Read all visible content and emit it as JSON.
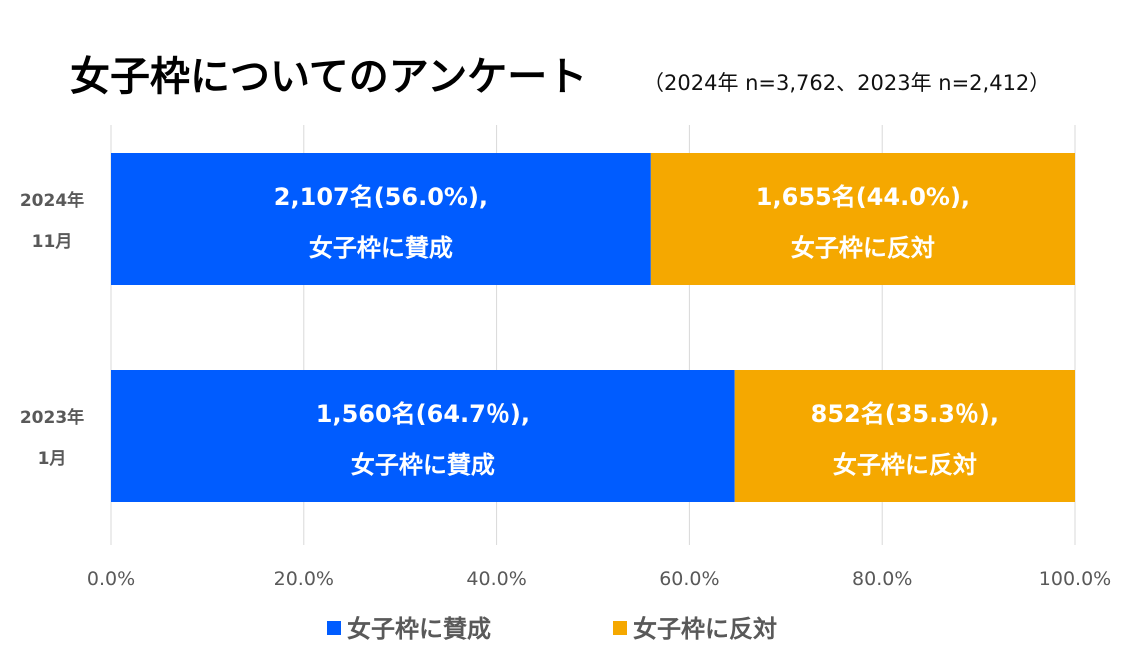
{
  "chart_data": {
    "type": "bar",
    "orientation": "horizontal",
    "stacked": "100%",
    "title": "女子枠についてのアンケート",
    "subtitle": "（2024年 n=3,762、2023年 n=2,412）",
    "categories": [
      [
        "2024年",
        "11月"
      ],
      [
        "2023年",
        "1月"
      ]
    ],
    "xlim": [
      0,
      100
    ],
    "x_ticks": [
      "0.0%",
      "20.0%",
      "40.0%",
      "60.0%",
      "80.0%",
      "100.0%"
    ],
    "grid": "vertical",
    "legend_position": "bottom",
    "series": [
      {
        "name": "女子枠に賛成",
        "color": "#005CFF",
        "values": [
          56.0,
          64.7
        ],
        "counts": [
          2107,
          1560
        ],
        "labels": [
          [
            "2,107名(56.0%),",
            "女子枠に賛成"
          ],
          [
            "1,560名(64.7％),",
            "女子枠に賛成"
          ]
        ]
      },
      {
        "name": "女子枠に反対",
        "color": "#F5A800",
        "values": [
          44.0,
          35.3
        ],
        "counts": [
          1655,
          852
        ],
        "labels": [
          [
            "1,655名(44.0%),",
            "女子枠に反対"
          ],
          [
            "852名(35.3％),",
            "女子枠に反対"
          ]
        ]
      }
    ]
  }
}
